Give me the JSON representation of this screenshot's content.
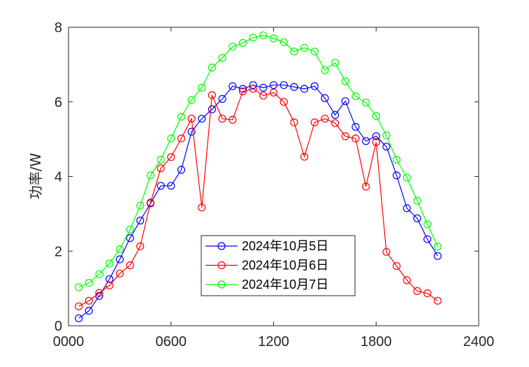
{
  "chart_data": {
    "type": "line",
    "title": "",
    "xlabel": "",
    "ylabel": "功率/W",
    "xlim": [
      0,
      2400
    ],
    "ylim": [
      0,
      8
    ],
    "x_ticks": [
      0,
      600,
      1200,
      1800,
      2400
    ],
    "x_tick_labels": [
      "0000",
      "0600",
      "1200",
      "1800",
      "2400"
    ],
    "y_ticks": [
      0,
      2,
      4,
      6,
      8
    ],
    "y_tick_labels": [
      "0",
      "2",
      "4",
      "6",
      "8"
    ],
    "grid": false,
    "legend_position": "bottom-center",
    "x": [
      60,
      120,
      180,
      240,
      300,
      360,
      420,
      480,
      540,
      600,
      660,
      720,
      780,
      840,
      900,
      960,
      1020,
      1080,
      1140,
      1200,
      1260,
      1320,
      1380,
      1440,
      1500,
      1560,
      1620,
      1680,
      1740,
      1800,
      1860,
      1920,
      1980,
      2040,
      2100,
      2160
    ],
    "series": [
      {
        "name": "2024年10月5日",
        "color": "#0000ff",
        "values": [
          0.2,
          0.4,
          0.8,
          1.25,
          1.78,
          2.35,
          2.82,
          3.28,
          3.75,
          3.75,
          4.18,
          5.2,
          5.55,
          5.8,
          6.08,
          6.42,
          6.35,
          6.45,
          6.38,
          6.45,
          6.45,
          6.4,
          6.35,
          6.42,
          6.1,
          5.65,
          6.02,
          5.33,
          4.95,
          5.08,
          4.8,
          4.03,
          3.15,
          2.88,
          2.32,
          1.87
        ]
      },
      {
        "name": "2024年10月6日",
        "color": "#ff0000",
        "values": [
          0.52,
          0.67,
          0.88,
          1.08,
          1.4,
          1.62,
          2.13,
          3.3,
          4.22,
          4.52,
          5.02,
          5.55,
          3.17,
          6.18,
          5.55,
          5.52,
          6.28,
          6.35,
          6.17,
          6.25,
          6.0,
          5.45,
          4.53,
          5.45,
          5.55,
          5.43,
          5.08,
          5.02,
          3.73,
          4.92,
          1.98,
          1.6,
          1.22,
          0.93,
          0.87,
          0.67
        ]
      },
      {
        "name": "2024年10月7日",
        "color": "#00ff00",
        "values": [
          1.03,
          1.15,
          1.38,
          1.67,
          2.05,
          2.58,
          3.22,
          4.03,
          4.45,
          5.02,
          5.6,
          6.05,
          6.38,
          6.92,
          7.18,
          7.48,
          7.58,
          7.72,
          7.78,
          7.7,
          7.6,
          7.35,
          7.45,
          7.35,
          6.85,
          7.05,
          6.55,
          6.15,
          5.98,
          5.62,
          5.1,
          4.45,
          3.97,
          3.35,
          2.72,
          2.12
        ]
      }
    ]
  }
}
